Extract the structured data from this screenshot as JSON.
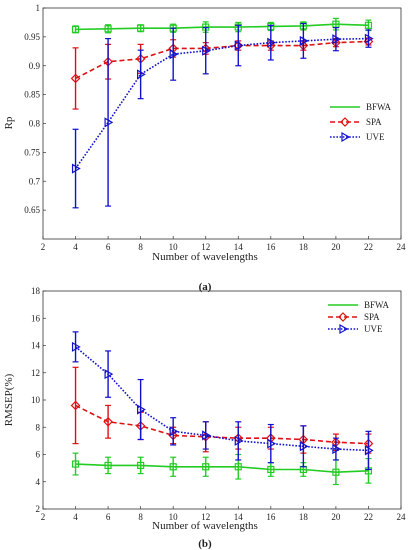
{
  "chart_data": [
    {
      "type": "line",
      "panel_label": "(a)",
      "ylabel": "Rp",
      "xlabel": "Number of wavelengths",
      "xlim": [
        2,
        24
      ],
      "ylim": [
        0.6,
        1.0
      ],
      "xticks": [
        2,
        4,
        6,
        8,
        10,
        12,
        14,
        16,
        18,
        20,
        22,
        24
      ],
      "yticks": [
        0.65,
        0.7,
        0.75,
        0.8,
        0.85,
        0.9,
        0.95,
        1
      ],
      "ytick_labels": [
        "0.65",
        "0.7",
        "0.75",
        "0.8",
        "0.85",
        "0.9",
        "0.95",
        "1"
      ],
      "grid": false,
      "legend_placement": "right",
      "x": [
        4,
        6,
        8,
        10,
        12,
        14,
        16,
        18,
        20,
        22
      ],
      "series": [
        {
          "name": "BFWA",
          "color": "#22cc22",
          "dash": "solid",
          "marker": "square",
          "values": [
            0.963,
            0.964,
            0.965,
            0.965,
            0.967,
            0.967,
            0.968,
            0.969,
            0.972,
            0.97
          ],
          "errors": [
            0.006,
            0.007,
            0.006,
            0.007,
            0.009,
            0.008,
            0.007,
            0.007,
            0.01,
            0.009
          ]
        },
        {
          "name": "SPA",
          "color": "#dd1111",
          "dash": "dashed",
          "marker": "diamond",
          "values": [
            0.878,
            0.907,
            0.912,
            0.93,
            0.93,
            0.935,
            0.935,
            0.935,
            0.94,
            0.942
          ],
          "errors": [
            0.053,
            0.03,
            0.025,
            0.015,
            0.01,
            0.008,
            0.008,
            0.008,
            0.007,
            0.006
          ]
        },
        {
          "name": "UVE",
          "color": "#1111cc",
          "dash": "dotted",
          "marker": "triangle",
          "values": [
            0.722,
            0.802,
            0.885,
            0.92,
            0.926,
            0.935,
            0.94,
            0.943,
            0.946,
            0.947
          ],
          "errors": [
            0.068,
            0.145,
            0.042,
            0.045,
            0.04,
            0.035,
            0.03,
            0.03,
            0.02,
            0.015
          ]
        }
      ]
    },
    {
      "type": "line",
      "panel_label": "(b)",
      "ylabel": "RMSEP(%)",
      "xlabel": "Number of wavelengths",
      "xlim": [
        2,
        24
      ],
      "ylim": [
        2,
        18
      ],
      "xticks": [
        2,
        4,
        6,
        8,
        10,
        12,
        14,
        16,
        18,
        20,
        22,
        24
      ],
      "yticks": [
        2,
        4,
        6,
        8,
        10,
        12,
        14,
        16,
        18
      ],
      "ytick_labels": [
        "2",
        "4",
        "6",
        "8",
        "10",
        "12",
        "14",
        "16",
        "18"
      ],
      "grid": false,
      "legend_placement": "top-right",
      "x": [
        4,
        6,
        8,
        10,
        12,
        14,
        16,
        18,
        20,
        22
      ],
      "series": [
        {
          "name": "BFWA",
          "color": "#22cc22",
          "dash": "solid",
          "marker": "square",
          "values": [
            5.3,
            5.2,
            5.2,
            5.1,
            5.1,
            5.1,
            4.9,
            4.9,
            4.7,
            4.8
          ],
          "errors": [
            0.8,
            0.6,
            0.6,
            0.7,
            0.7,
            0.9,
            0.5,
            0.5,
            0.9,
            0.9
          ]
        },
        {
          "name": "SPA",
          "color": "#dd1111",
          "dash": "dashed",
          "marker": "diamond",
          "values": [
            9.6,
            8.4,
            8.1,
            7.4,
            7.3,
            7.2,
            7.2,
            7.1,
            6.9,
            6.8
          ],
          "errors": [
            2.8,
            1.2,
            1.0,
            0.6,
            1.1,
            0.8,
            0.8,
            1.0,
            0.6,
            0.7
          ]
        },
        {
          "name": "UVE",
          "color": "#1111cc",
          "dash": "dotted",
          "marker": "triangle",
          "values": [
            13.9,
            11.9,
            9.3,
            7.7,
            7.4,
            7.0,
            6.8,
            6.6,
            6.4,
            6.3
          ],
          "errors": [
            1.1,
            1.7,
            2.2,
            1.0,
            1.0,
            1.4,
            1.4,
            1.5,
            0.8,
            1.4
          ]
        }
      ]
    }
  ]
}
